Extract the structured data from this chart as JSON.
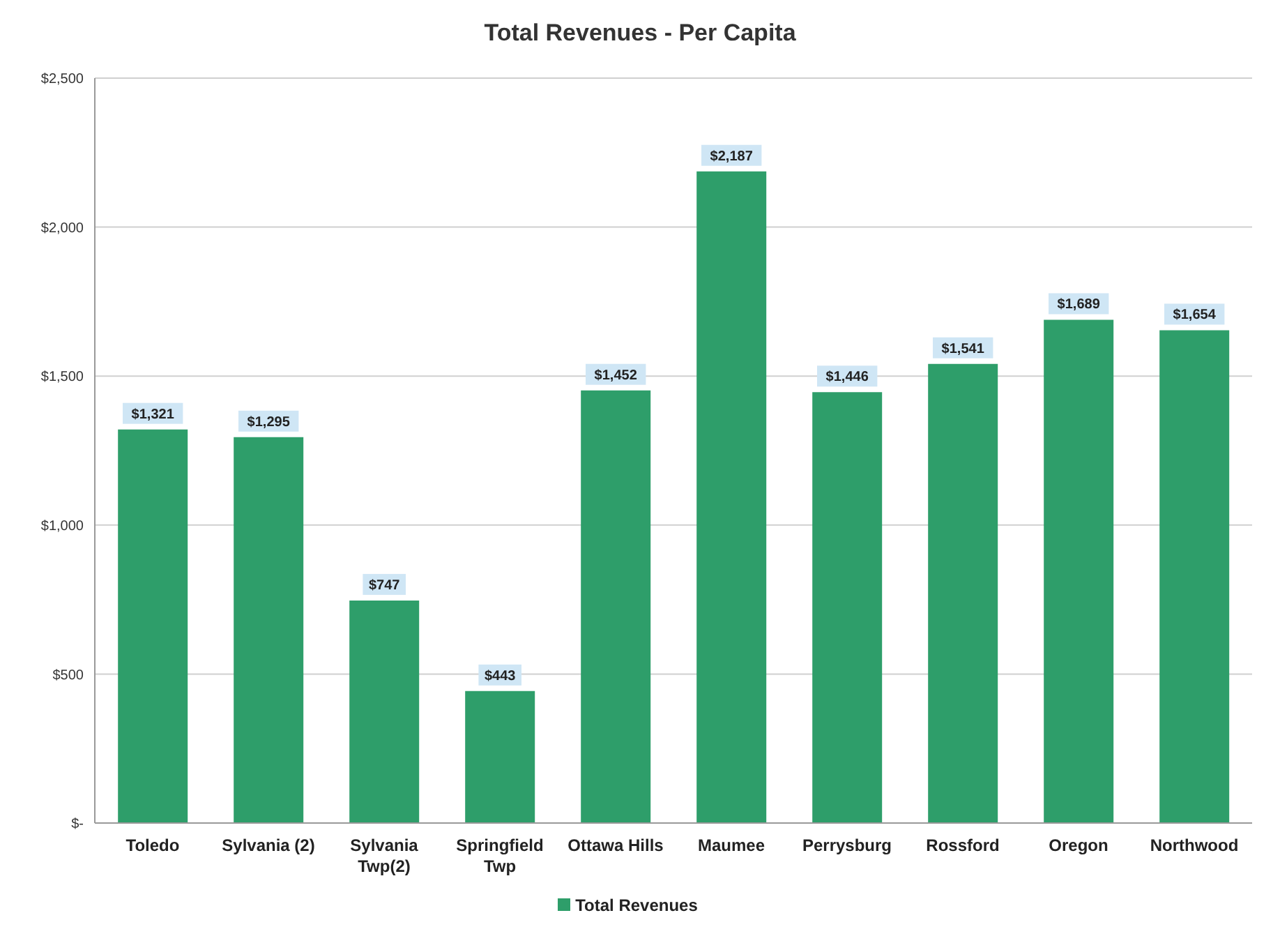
{
  "chart_data": {
    "type": "bar",
    "title": "Total Revenues - Per Capita",
    "categories": [
      "Toledo",
      "Sylvania (2)",
      "Sylvania Twp(2)",
      "Springfield Twp",
      "Ottawa Hills",
      "Maumee",
      "Perrysburg",
      "Rossford",
      "Oregon",
      "Northwood"
    ],
    "series": [
      {
        "name": "Total Revenues",
        "color": "#2e9e6a",
        "values": [
          1321,
          1295,
          747,
          443,
          1452,
          2187,
          1446,
          1541,
          1689,
          1654
        ],
        "value_labels": [
          "$1,321",
          "$1,295",
          "$747",
          "$443",
          "$1,452",
          "$2,187",
          "$1,446",
          "$1,541",
          "$1,689",
          "$1,654"
        ]
      }
    ],
    "ylim": [
      0,
      2500
    ],
    "yticks": [
      {
        "value": 0,
        "label": "$-"
      },
      {
        "value": 500,
        "label": "$500"
      },
      {
        "value": 1000,
        "label": "$1,000"
      },
      {
        "value": 1500,
        "label": "$1,500"
      },
      {
        "value": 2000,
        "label": "$2,000"
      },
      {
        "value": 2500,
        "label": "$2,500"
      }
    ],
    "grid": "y",
    "legend": "bottom"
  }
}
